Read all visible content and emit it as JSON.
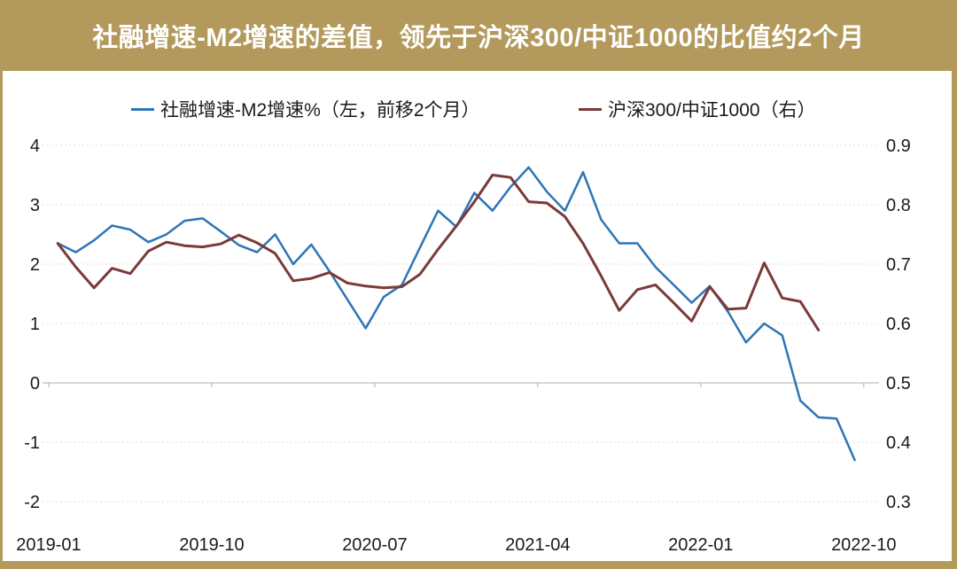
{
  "title": "社融增速-M2增速的差值，领先于沪深300/中证1000的比值约2个月",
  "colors": {
    "banner_gold": "#B39A5C",
    "background": "#FFFFFF",
    "title_text": "#FFFFFF",
    "series_blue": "#2E75B6",
    "series_dark_red": "#7B3A39",
    "gridline": "#DEDEDE",
    "axis_line": "#BFBFBF",
    "axis_text": "#1a1a1a"
  },
  "chart_data": {
    "type": "line",
    "title": "社融增速-M2增速的差值，领先于沪深300/中证1000的比值约2个月",
    "grid": "horizontal-dashed",
    "legend_position": "top",
    "x": [
      "2019-01",
      "2019-02",
      "2019-03",
      "2019-04",
      "2019-05",
      "2019-06",
      "2019-07",
      "2019-08",
      "2019-09",
      "2019-10",
      "2019-11",
      "2019-12",
      "2020-01",
      "2020-02",
      "2020-03",
      "2020-04",
      "2020-05",
      "2020-06",
      "2020-07",
      "2020-08",
      "2020-09",
      "2020-10",
      "2020-11",
      "2020-12",
      "2021-01",
      "2021-02",
      "2021-03",
      "2021-04",
      "2021-05",
      "2021-06",
      "2021-07",
      "2021-08",
      "2021-09",
      "2021-10",
      "2021-11",
      "2021-12",
      "2022-01",
      "2022-02",
      "2022-03",
      "2022-04",
      "2022-05",
      "2022-06",
      "2022-07",
      "2022-08",
      "2022-09",
      "2022-10"
    ],
    "x_tick_labels": [
      "2019-01",
      "2019-10",
      "2020-07",
      "2021-04",
      "2022-01",
      "2022-10"
    ],
    "x_tick_month_indices": [
      0,
      9,
      18,
      27,
      36,
      45
    ],
    "left_axis": {
      "ticks": [
        4,
        3,
        2,
        1,
        0,
        -1,
        -2
      ],
      "range": [
        -2,
        4
      ]
    },
    "right_axis": {
      "ticks": [
        0.9,
        0.8,
        0.7,
        0.6,
        0.5,
        0.4,
        0.3
      ],
      "range": [
        0.3,
        0.9
      ]
    },
    "series": [
      {
        "name": "社融增速-M2增速%（左，前移2个月）",
        "axis": "left",
        "color": "#2E75B6",
        "values": [
          2.35,
          2.2,
          2.4,
          2.65,
          2.58,
          2.37,
          2.5,
          2.73,
          2.77,
          2.55,
          2.32,
          2.2,
          2.5,
          2.0,
          2.33,
          1.88,
          1.4,
          0.92,
          1.45,
          1.65,
          2.28,
          2.9,
          2.63,
          3.2,
          2.9,
          3.3,
          3.63,
          3.22,
          2.9,
          3.55,
          2.75,
          2.35,
          2.35,
          1.95,
          1.65,
          1.35,
          1.63,
          1.2,
          0.68,
          1.0,
          0.8,
          -0.3,
          -0.58,
          -0.6,
          -1.3,
          null
        ]
      },
      {
        "name": "沪深300/中证1000（右）",
        "axis": "right",
        "color": "#7B3A39",
        "values": [
          0.735,
          0.695,
          0.66,
          0.693,
          0.684,
          0.722,
          0.737,
          0.731,
          0.729,
          0.734,
          0.749,
          0.736,
          0.718,
          0.672,
          0.676,
          0.686,
          0.668,
          0.663,
          0.66,
          0.662,
          0.683,
          0.725,
          0.764,
          0.805,
          0.85,
          0.846,
          0.805,
          0.803,
          0.78,
          0.735,
          0.68,
          0.622,
          0.657,
          0.665,
          0.635,
          0.604,
          0.662,
          0.624,
          0.626,
          0.702,
          0.643,
          0.637,
          0.589,
          null,
          null,
          null
        ]
      }
    ]
  }
}
